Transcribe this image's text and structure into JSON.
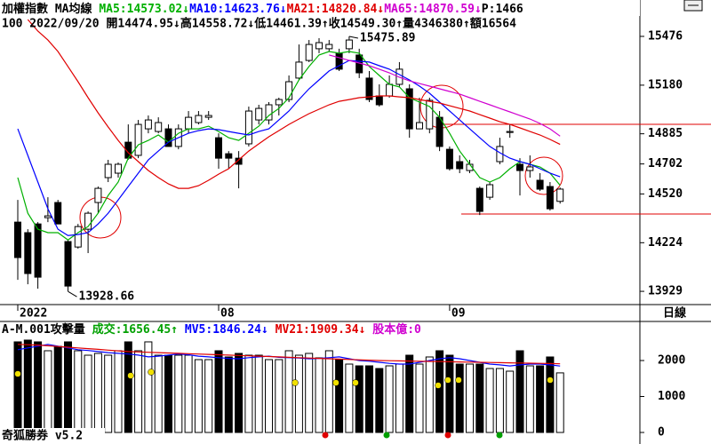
{
  "chart_data": [
    {
      "type": "candlestick",
      "title": "加權指數 MA均線",
      "extra": "P:1466",
      "quote_line": "100 2022/09/20 開14474.95↓高14558.72↓低14461.39↑收14549.30↑量4346380↑額16564",
      "period_label": "日線",
      "categories": [
        "2022",
        null,
        null,
        null,
        null,
        null,
        null,
        null,
        null,
        null,
        null,
        null,
        null,
        null,
        null,
        null,
        null,
        null,
        null,
        null,
        "08",
        null,
        null,
        null,
        null,
        null,
        null,
        null,
        null,
        null,
        null,
        null,
        null,
        null,
        null,
        null,
        null,
        null,
        null,
        null,
        null,
        null,
        null,
        "09",
        null,
        null,
        null,
        null,
        null,
        null,
        null,
        null,
        null,
        null,
        null
      ],
      "open": [
        14349,
        14285,
        14338,
        14376,
        14468,
        14231,
        14198,
        14306,
        14468,
        14619,
        14646,
        14834,
        14754,
        14915,
        14899,
        14915,
        14808,
        14915,
        14953,
        14985,
        14861,
        14764,
        14737,
        14824,
        14969,
        14969,
        15061,
        15093,
        15223,
        15330,
        15401,
        15401,
        15374,
        15401,
        15363,
        15223,
        15115,
        15115,
        15185,
        15158,
        14915,
        14915,
        14985,
        14791,
        14716,
        14662,
        14554,
        14500,
        14716,
        14893,
        14700,
        14662,
        14603,
        14565,
        14474.95
      ],
      "high": [
        14484,
        14306,
        14349,
        14500,
        14484,
        14241,
        14338,
        14414,
        14565,
        14727,
        14711,
        14942,
        14969,
        14996,
        14985,
        14942,
        14942,
        15023,
        15023,
        15023,
        14888,
        14780,
        14780,
        15050,
        15061,
        15077,
        15104,
        15239,
        15427,
        15454,
        15465,
        15454,
        15401,
        15475.89,
        15401,
        15266,
        15185,
        15239,
        15320,
        15185,
        15104,
        15104,
        15023,
        14808,
        14754,
        14727,
        14565,
        14592,
        14861,
        14942,
        14737,
        14754,
        14646,
        14592,
        14558.72
      ],
      "low": [
        13999,
        13972,
        13945,
        14349,
        14338,
        13928.66,
        14188,
        14161,
        14403,
        14592,
        14619,
        14727,
        14737,
        14888,
        14888,
        14808,
        14791,
        14888,
        14942,
        14969,
        14673,
        14673,
        14554,
        14808,
        14942,
        14942,
        14996,
        15077,
        15212,
        15320,
        15374,
        15384,
        15266,
        15374,
        15223,
        15077,
        15050,
        15104,
        15169,
        14861,
        14915,
        14888,
        14780,
        14662,
        14646,
        14646,
        14392,
        14484,
        14700,
        14861,
        14511,
        14619,
        14538,
        14419,
        14461.39
      ],
      "close": [
        14134,
        14037,
        14015,
        14387,
        14338,
        13961,
        14322,
        14403,
        14554,
        14700,
        14700,
        14737,
        14942,
        14969,
        14953,
        14808,
        14915,
        14985,
        14996,
        14996,
        14737,
        14737,
        14700,
        15023,
        15039,
        15061,
        15093,
        15201,
        15320,
        15427,
        15438,
        15427,
        15277,
        15454,
        15255,
        15093,
        15061,
        15185,
        15277,
        14915,
        14953,
        15088,
        14808,
        14673,
        14673,
        14700,
        14414,
        14576,
        14808,
        14899,
        14662,
        14684,
        14549,
        14430,
        14549.3
      ],
      "up_color": "#ffffff",
      "down_color": "#000000",
      "series": [
        {
          "name": "MA5",
          "legend": "MA5:14573.02↓",
          "color": "#00b000",
          "values": [
            14619,
            14403,
            14306,
            14285,
            14285,
            14241,
            14285,
            14322,
            14403,
            14511,
            14592,
            14737,
            14818,
            14845,
            14878,
            14834,
            14888,
            14915,
            14915,
            14931,
            14899,
            14861,
            14845,
            14888,
            14931,
            14996,
            15039,
            15104,
            15212,
            15293,
            15363,
            15384,
            15374,
            15384,
            15374,
            15293,
            15239,
            15185,
            15169,
            15104,
            15077,
            15050,
            14985,
            14888,
            14780,
            14700,
            14619,
            14592,
            14619,
            14673,
            14716,
            14700,
            14684,
            14646,
            14573.02
          ]
        },
        {
          "name": "MA10",
          "legend": "MA10:14623.76↓",
          "color": "#0000ff",
          "values": [
            14915,
            14754,
            14592,
            14430,
            14306,
            14268,
            14274,
            14285,
            14338,
            14403,
            14484,
            14565,
            14646,
            14727,
            14780,
            14834,
            14861,
            14888,
            14904,
            14915,
            14910,
            14899,
            14888,
            14878,
            14899,
            14915,
            14969,
            15023,
            15093,
            15158,
            15212,
            15266,
            15298,
            15330,
            15325,
            15320,
            15298,
            15277,
            15244,
            15212,
            15174,
            15131,
            15077,
            15023,
            14969,
            14915,
            14861,
            14808,
            14770,
            14737,
            14716,
            14700,
            14673,
            14646,
            14623.76
          ]
        },
        {
          "name": "MA21",
          "legend": "MA21:14820.84↓",
          "color": "#e00000",
          "values": [
            null,
            15578,
            15508,
            15454,
            15384,
            15293,
            15201,
            15104,
            15012,
            14926,
            14845,
            14770,
            14716,
            14662,
            14619,
            14581,
            14554,
            14554,
            14570,
            14603,
            14640,
            14673,
            14727,
            14780,
            14824,
            14867,
            14904,
            14942,
            14975,
            15007,
            15034,
            15061,
            15082,
            15093,
            15104,
            15109,
            15115,
            15115,
            15109,
            15104,
            15093,
            15082,
            15072,
            15055,
            15039,
            15023,
            15001,
            14980,
            14958,
            14942,
            14921,
            14899,
            14878,
            14851,
            14820.84
          ]
        },
        {
          "name": "MA65",
          "legend": "MA65:14870.59↓",
          "color": "#d000d0",
          "values": [
            null,
            null,
            null,
            null,
            null,
            null,
            null,
            null,
            null,
            null,
            null,
            null,
            null,
            null,
            null,
            null,
            null,
            null,
            null,
            null,
            null,
            null,
            null,
            null,
            null,
            null,
            null,
            null,
            null,
            null,
            null,
            15363,
            15347,
            15330,
            15314,
            15298,
            15277,
            15255,
            15228,
            15206,
            15190,
            15174,
            15158,
            15142,
            15126,
            15104,
            15082,
            15061,
            15039,
            15018,
            14996,
            14975,
            14948,
            14915,
            14870.59
          ]
        }
      ],
      "annotations": [
        {
          "text": "15475.89",
          "x": 33,
          "y": 15475.89
        },
        {
          "text": "13928.66",
          "x": 5,
          "y": 13928.66
        }
      ],
      "ylim": [
        13854,
        15589
      ],
      "yticks": [
        13929,
        14224,
        14520,
        14702,
        14885,
        15180,
        15476
      ]
    },
    {
      "type": "bar",
      "title": "A-M.001攻擊量",
      "legend": [
        {
          "text": "成交:1656.45↑",
          "color": "#00a000"
        },
        {
          "text": "MV5:1846.24↓",
          "color": "#0000ff"
        },
        {
          "text": "MV21:1909.34↓",
          "color": "#e00000"
        },
        {
          "text": "股本億:0",
          "color": "#d000d0"
        }
      ],
      "values": [
        2519,
        2568,
        2519,
        2272,
        2395,
        2519,
        2272,
        2148,
        2198,
        2148,
        2272,
        2519,
        2272,
        2519,
        2148,
        2148,
        2148,
        2148,
        2025,
        2025,
        2272,
        2099,
        2198,
        2148,
        2148,
        2025,
        2025,
        2272,
        2148,
        2198,
        2074,
        2272,
        2025,
        1901,
        1852,
        1852,
        1778,
        1852,
        1901,
        2148,
        1901,
        2099,
        2272,
        2148,
        1901,
        1901,
        1901,
        1778,
        1778,
        1704,
        2272,
        1852,
        1852,
        2099,
        1656.45
      ],
      "series": [
        {
          "name": "MV5",
          "color": "#0000ff",
          "values": [
            2300,
            2350,
            2400,
            2450,
            2400,
            2350,
            2300,
            2280,
            2250,
            2220,
            2200,
            2180,
            2150,
            2100,
            2120,
            2150,
            2180,
            2160,
            2120,
            2100,
            2080,
            2060,
            2050,
            2080,
            2100,
            2120,
            2090,
            2080,
            2070,
            2050,
            2060,
            2080,
            2100,
            2050,
            2000,
            1980,
            1950,
            1920,
            1900,
            1900,
            1950,
            2000,
            2050,
            2080,
            2050,
            2000,
            1950,
            1900,
            1880,
            1850,
            1880,
            1900,
            1900,
            1880,
            1846.24
          ]
        },
        {
          "name": "MV21",
          "color": "#e00000",
          "values": [
            2450,
            2440,
            2430,
            2410,
            2390,
            2370,
            2350,
            2330,
            2310,
            2290,
            2270,
            2250,
            2240,
            2230,
            2220,
            2210,
            2200,
            2190,
            2180,
            2170,
            2160,
            2150,
            2140,
            2130,
            2120,
            2110,
            2100,
            2090,
            2080,
            2070,
            2060,
            2050,
            2040,
            2030,
            2020,
            2010,
            2000,
            1995,
            1990,
            1985,
            1980,
            1975,
            1970,
            1965,
            1960,
            1955,
            1950,
            1945,
            1940,
            1935,
            1930,
            1925,
            1920,
            1915,
            1909.34
          ]
        }
      ],
      "ylim": [
        0,
        3037
      ],
      "yticks": [
        0,
        1000,
        2000
      ]
    }
  ],
  "footer": "奇狐勝券 v5.2"
}
